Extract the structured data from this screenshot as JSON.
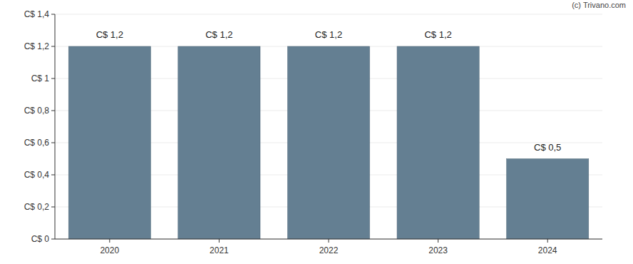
{
  "chart_data": {
    "type": "bar",
    "categories": [
      "2020",
      "2021",
      "2022",
      "2023",
      "2024"
    ],
    "values": [
      1.2,
      1.2,
      1.2,
      1.2,
      0.5
    ],
    "value_labels": [
      "C$ 1,2",
      "C$ 1,2",
      "C$ 1,2",
      "C$ 1,2",
      "C$ 0,5"
    ],
    "color": "#647f92",
    "ylim": [
      0,
      1.4
    ],
    "yticks": [
      {
        "value": 0,
        "label": "C$ 0"
      },
      {
        "value": 0.2,
        "label": "C$ 0,2"
      },
      {
        "value": 0.4,
        "label": "C$ 0,4"
      },
      {
        "value": 0.6,
        "label": "C$ 0,6"
      },
      {
        "value": 0.8,
        "label": "C$ 0,8"
      },
      {
        "value": 1,
        "label": "C$ 1"
      },
      {
        "value": 1.2,
        "label": "C$ 1,2"
      },
      {
        "value": 1.4,
        "label": "C$ 1,4"
      }
    ],
    "grid": true,
    "data_labels": true,
    "annotations": [
      "(c) Trivano.com"
    ]
  }
}
